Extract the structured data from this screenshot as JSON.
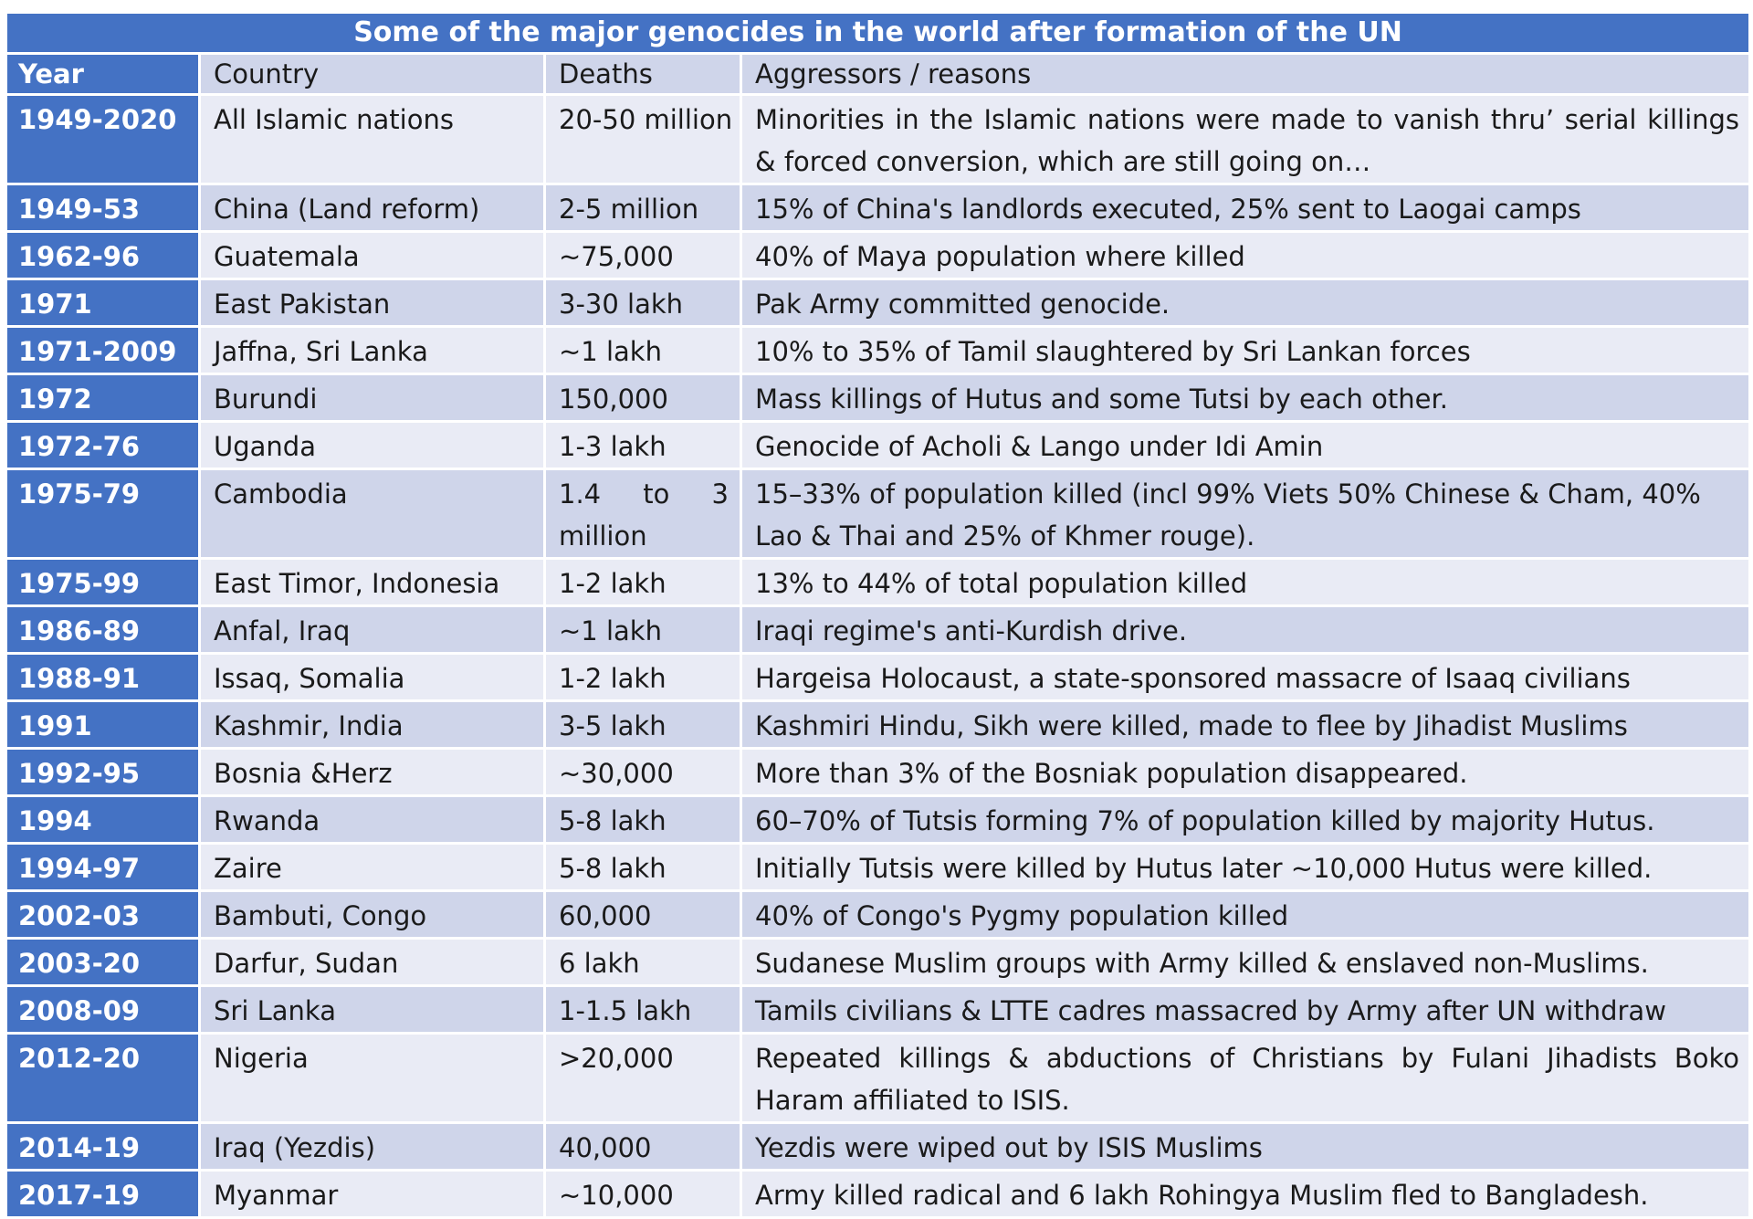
{
  "table": {
    "title": "Some of the major genocides in the world after formation of the UN",
    "headers": {
      "year": "Year",
      "country": "Country",
      "deaths": "Deaths",
      "reasons": "Aggressors /  reasons"
    },
    "rows": [
      {
        "year": "1949-2020",
        "country": "All Islamic nations",
        "deaths": "20-50 million",
        "reason": "Minorities in the Islamic nations were made to vanish thru’ serial killings & forced conversion, which are still going on…"
      },
      {
        "year": "1949-53",
        "country": "China (Land reform)",
        "deaths": "2-5 million",
        "reason": "15% of China's landlords executed,  25% sent to Laogai camps"
      },
      {
        "year": "1962-96",
        "country": "Guatemala",
        "deaths": "~75,000",
        "reason": "40% of Maya population where killed"
      },
      {
        "year": "1971",
        "country": "East Pakistan",
        "deaths": "3-30 lakh",
        "reason": "Pak Army committed genocide."
      },
      {
        "year": "1971-2009",
        "country": "Jaffna, Sri Lanka",
        "deaths": "~1 lakh",
        "reason": "10% to 35% of Tamil slaughtered by Sri Lankan forces"
      },
      {
        "year": "1972",
        "country": "Burundi",
        "deaths": "150,000",
        "reason": "Mass killings of Hutus and some Tutsi by each other."
      },
      {
        "year": "1972-76",
        "country": "Uganda",
        "deaths": "1-3 lakh",
        "reason": "Genocide of Acholi & Lango under Idi Amin"
      },
      {
        "year": "1975-79",
        "country": "Cambodia",
        "deaths": "1.4 to 3 million",
        "reason": "15–33% of population killed (incl 99% Viets  50% Chinese & Cham, 40% Lao & Thai and 25% of Khmer rouge)."
      },
      {
        "year": "1975-99",
        "country": "East Timor, Indonesia",
        "deaths": "1-2 lakh",
        "reason": "13% to 44% of total population killed"
      },
      {
        "year": "1986-89",
        "country": "Anfal, Iraq",
        "deaths": "~1 lakh",
        "reason": "Iraqi regime's anti-Kurdish drive."
      },
      {
        "year": "1988-91",
        "country": "Issaq, Somalia",
        "deaths": "1-2 lakh",
        "reason": "Hargeisa Holocaust, a state-sponsored massacre of Isaaq civilians"
      },
      {
        "year": "1991",
        "country": "Kashmir, India",
        "deaths": "3-5 lakh",
        "reason": "Kashmiri Hindu, Sikh were killed, made to flee by Jihadist Muslims"
      },
      {
        "year": "1992-95",
        "country": "Bosnia &Herz",
        "deaths": "~30,000",
        "reason": "More than 3% of the Bosniak population disappeared."
      },
      {
        "year": "1994",
        "country": "Rwanda",
        "deaths": "5-8 lakh",
        "reason": "60–70% of Tutsis forming 7% of population killed by majority Hutus."
      },
      {
        "year": "1994-97",
        "country": "Zaire",
        "deaths": "5-8 lakh",
        "reason": "Initially Tutsis were killed by Hutus later ~10,000 Hutus were killed."
      },
      {
        "year": "2002-03",
        "country": "Bambuti, Congo",
        "deaths": "60,000",
        "reason": "40% of Congo's Pygmy population killed"
      },
      {
        "year": "2003-20",
        "country": "Darfur, Sudan",
        "deaths": "6 lakh",
        "reason": "Sudanese Muslim groups with Army killed & enslaved non-Muslims."
      },
      {
        "year": "2008-09",
        "country": "Sri Lanka",
        "deaths": "1-1.5 lakh",
        "reason": "Tamils civilians & LTTE cadres massacred by Army after UN withdraw"
      },
      {
        "year": "2012-20",
        "country": "Nigeria",
        "deaths": ">20,000",
        "reason": "Repeated killings & abductions of Christians by Fulani Jihadists Boko Haram affiliated to ISIS."
      },
      {
        "year": "2014-19",
        "country": "Iraq (Yezdis)",
        "deaths": "40,000",
        "reason": "Yezdis were wiped out by ISIS Muslims"
      },
      {
        "year": "2017-19",
        "country": "Myanmar",
        "deaths": "~10,000",
        "reason": "Army killed radical and 6 lakh Rohingya Muslim fled to Bangladesh."
      }
    ]
  },
  "colors": {
    "title_bg": "#4472c4",
    "year_bg": "#4472c4",
    "row_odd": "#cfd5ea",
    "row_even": "#e9ebf5"
  }
}
